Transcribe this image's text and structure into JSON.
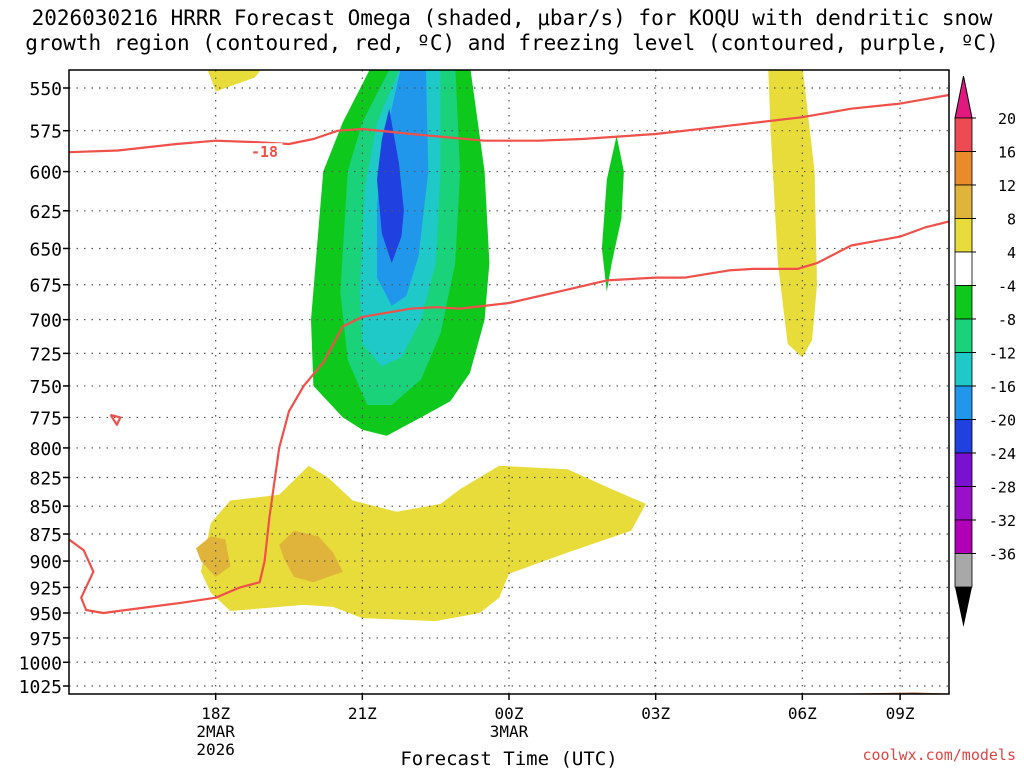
{
  "title": {
    "line1": "2026030216 HRRR Forecast Omega (shaded, μbar/s) for KOQU with dendritic snow",
    "line2": "growth region (contoured, red, ºC) and freezing level (contoured, purple, ºC)"
  },
  "xlabel": "Forecast Time (UTC)",
  "credit": "coolwx.com/models",
  "chart_data": {
    "type": "heatmap",
    "x_unit": "hours since 2026-03-02 15Z",
    "xlim": [
      0,
      18
    ],
    "y_unit": "hPa",
    "ylim": [
      1040,
      540
    ],
    "y_ticks": [
      550,
      575,
      600,
      625,
      650,
      675,
      700,
      725,
      750,
      775,
      800,
      825,
      850,
      875,
      900,
      925,
      950,
      975,
      1000,
      1025
    ],
    "x_ticks": [
      {
        "t": 3,
        "label": "18Z",
        "sub1": "2MAR",
        "sub2": "2026"
      },
      {
        "t": 6,
        "label": "21Z",
        "sub1": "",
        "sub2": ""
      },
      {
        "t": 9,
        "label": "00Z",
        "sub1": "3MAR",
        "sub2": ""
      },
      {
        "t": 12,
        "label": "03Z",
        "sub1": "",
        "sub2": ""
      },
      {
        "t": 15,
        "label": "06Z",
        "sub1": "",
        "sub2": ""
      },
      {
        "t": 17,
        "label": "09Z",
        "sub1": "",
        "sub2": ""
      }
    ],
    "colorbar": {
      "labels": [
        "20",
        "16",
        "12",
        "8",
        "4",
        "-4",
        "-8",
        "-12",
        "-16",
        "-20",
        "-24",
        "-28",
        "-32",
        "-36"
      ],
      "colors": [
        "#ed4b53",
        "#e98b2a",
        "#e0b43a",
        "#e8dc3a",
        "#ffffff",
        "#0fc81c",
        "#19d27a",
        "#1ec9c8",
        "#2197ec",
        "#2040e0",
        "#7a10d0",
        "#9a10c8",
        "#b000b8",
        "#a8a8a8"
      ],
      "top_arrow_color": "#e01880",
      "bottom_arrow_color": "#000000"
    },
    "omega_fills": [
      {
        "level": "4 to 8",
        "color": "#e8dc3a",
        "polygon": [
          [
            2.7,
            910
          ],
          [
            2.9,
            865
          ],
          [
            3.3,
            845
          ],
          [
            4.3,
            840
          ],
          [
            4.9,
            815
          ],
          [
            5.3,
            825
          ],
          [
            5.8,
            845
          ],
          [
            6.7,
            855
          ],
          [
            7.6,
            848
          ],
          [
            8.0,
            835
          ],
          [
            8.8,
            815
          ],
          [
            10.2,
            818
          ],
          [
            11.1,
            835
          ],
          [
            11.8,
            848
          ],
          [
            11.5,
            872
          ],
          [
            10.2,
            892
          ],
          [
            9.0,
            912
          ],
          [
            8.8,
            935
          ],
          [
            8.4,
            950
          ],
          [
            7.5,
            958
          ],
          [
            6.0,
            955
          ],
          [
            5.4,
            944
          ],
          [
            4.8,
            942
          ],
          [
            3.3,
            948
          ],
          [
            2.9,
            930
          ]
        ]
      },
      {
        "level": "4 to 8",
        "color": "#e8dc3a",
        "polygon": [
          [
            2.8,
            537
          ],
          [
            4.0,
            537
          ],
          [
            3.8,
            544
          ],
          [
            3.0,
            552
          ]
        ]
      },
      {
        "level": "4 to 8",
        "color": "#e8dc3a",
        "polygon": [
          [
            14.3,
            537
          ],
          [
            15.0,
            537
          ],
          [
            15.25,
            600
          ],
          [
            15.3,
            675
          ],
          [
            15.2,
            715
          ],
          [
            15.0,
            728
          ],
          [
            14.7,
            718
          ],
          [
            14.5,
            660
          ],
          [
            14.35,
            575
          ]
        ]
      },
      {
        "level": "8 to 12",
        "color": "#e0b43a",
        "polygon": [
          [
            2.6,
            888
          ],
          [
            2.9,
            877
          ],
          [
            3.2,
            880
          ],
          [
            3.3,
            905
          ],
          [
            3.0,
            915
          ],
          [
            2.7,
            900
          ]
        ]
      },
      {
        "level": "8 to 12",
        "color": "#e0b43a",
        "polygon": [
          [
            4.3,
            885
          ],
          [
            4.6,
            872
          ],
          [
            5.1,
            877
          ],
          [
            5.4,
            892
          ],
          [
            5.6,
            910
          ],
          [
            5.0,
            920
          ],
          [
            4.6,
            915
          ],
          [
            4.4,
            898
          ]
        ]
      },
      {
        "level": "-4 to -8",
        "color": "#0fc81c",
        "polygon": [
          [
            6.2,
            537
          ],
          [
            8.2,
            537
          ],
          [
            8.5,
            600
          ],
          [
            8.6,
            660
          ],
          [
            8.5,
            700
          ],
          [
            8.2,
            740
          ],
          [
            7.8,
            762
          ],
          [
            7.2,
            775
          ],
          [
            6.5,
            790
          ],
          [
            6.0,
            785
          ],
          [
            5.6,
            775
          ],
          [
            5.0,
            750
          ],
          [
            4.95,
            700
          ],
          [
            5.2,
            600
          ],
          [
            5.6,
            570
          ]
        ]
      },
      {
        "level": "-4 to -8",
        "color": "#0fc81c",
        "polygon": [
          [
            11.0,
            605
          ],
          [
            11.2,
            578
          ],
          [
            11.35,
            600
          ],
          [
            11.3,
            630
          ],
          [
            11.1,
            660
          ],
          [
            11.0,
            680
          ],
          [
            10.9,
            650
          ]
        ]
      },
      {
        "level": "-8 to -12",
        "color": "#19d27a",
        "polygon": [
          [
            6.6,
            537
          ],
          [
            7.9,
            537
          ],
          [
            8.0,
            600
          ],
          [
            7.9,
            660
          ],
          [
            7.6,
            710
          ],
          [
            7.2,
            745
          ],
          [
            6.6,
            765
          ],
          [
            6.1,
            765
          ],
          [
            5.7,
            730
          ],
          [
            5.55,
            680
          ],
          [
            5.7,
            600
          ],
          [
            6.0,
            570
          ]
        ]
      },
      {
        "level": "-12 to -16",
        "color": "#1ec9c8",
        "polygon": [
          [
            6.8,
            537
          ],
          [
            7.6,
            537
          ],
          [
            7.6,
            600
          ],
          [
            7.5,
            660
          ],
          [
            7.2,
            700
          ],
          [
            6.8,
            728
          ],
          [
            6.4,
            735
          ],
          [
            6.0,
            718
          ],
          [
            5.95,
            680
          ],
          [
            6.05,
            610
          ],
          [
            6.3,
            570
          ]
        ]
      },
      {
        "level": "-16 to -20",
        "color": "#2197ec",
        "polygon": [
          [
            6.8,
            537
          ],
          [
            7.3,
            537
          ],
          [
            7.35,
            600
          ],
          [
            7.15,
            655
          ],
          [
            6.9,
            683
          ],
          [
            6.6,
            690
          ],
          [
            6.3,
            670
          ],
          [
            6.3,
            620
          ],
          [
            6.5,
            575
          ]
        ]
      },
      {
        "level": "-20 to -24",
        "color": "#2040e0",
        "polygon": [
          [
            6.55,
            562
          ],
          [
            6.75,
            595
          ],
          [
            6.85,
            625
          ],
          [
            6.8,
            642
          ],
          [
            6.6,
            660
          ],
          [
            6.4,
            640
          ],
          [
            6.3,
            605
          ],
          [
            6.4,
            580
          ]
        ]
      }
    ],
    "contours": [
      {
        "label": "-18",
        "label_at": [
          4.0,
          588
        ],
        "points": [
          [
            0,
            588
          ],
          [
            1.0,
            587
          ],
          [
            2.2,
            583
          ],
          [
            3.0,
            581
          ],
          [
            3.9,
            582
          ],
          [
            4.5,
            583
          ],
          [
            5.0,
            580
          ],
          [
            5.5,
            575
          ],
          [
            6.0,
            574
          ],
          [
            7.0,
            577
          ],
          [
            8.5,
            581
          ],
          [
            9.6,
            581
          ],
          [
            10.5,
            580
          ],
          [
            12.0,
            577
          ],
          [
            13.5,
            572
          ],
          [
            15.0,
            567
          ],
          [
            16.0,
            562
          ],
          [
            17.0,
            559
          ],
          [
            18.0,
            554
          ]
        ]
      },
      {
        "label": "",
        "label_at": null,
        "points": [
          [
            0,
            880
          ],
          [
            0.3,
            890
          ],
          [
            0.5,
            910
          ],
          [
            0.25,
            935
          ],
          [
            0.35,
            947
          ],
          [
            0.7,
            950
          ],
          [
            1.5,
            945
          ],
          [
            2.3,
            940
          ],
          [
            3.0,
            935
          ],
          [
            3.5,
            925
          ],
          [
            3.9,
            920
          ],
          [
            4.0,
            900
          ],
          [
            4.1,
            860
          ],
          [
            4.3,
            800
          ],
          [
            4.5,
            770
          ],
          [
            4.8,
            750
          ],
          [
            5.2,
            732
          ],
          [
            5.6,
            705
          ],
          [
            6.0,
            698
          ],
          [
            7.0,
            692
          ],
          [
            7.5,
            691
          ],
          [
            8.0,
            692
          ],
          [
            9.0,
            688
          ],
          [
            10.0,
            680
          ],
          [
            11.0,
            672
          ],
          [
            12.0,
            670
          ],
          [
            12.6,
            670
          ],
          [
            13.5,
            665
          ],
          [
            14.0,
            664
          ],
          [
            14.9,
            664
          ],
          [
            15.3,
            660
          ],
          [
            16.0,
            648
          ],
          [
            17.0,
            642
          ],
          [
            17.5,
            636
          ],
          [
            18.0,
            632
          ]
        ]
      },
      {
        "label": "",
        "label_at": null,
        "points": [
          [
            0.85,
            773
          ],
          [
            1.05,
            775
          ],
          [
            0.98,
            781
          ],
          [
            0.85,
            773
          ]
        ]
      }
    ],
    "terrain": {
      "color": "#a85a28",
      "points": [
        [
          0,
          1040
        ],
        [
          0.05,
          1035
        ],
        [
          1.0,
          1034
        ],
        [
          2.0,
          1033
        ],
        [
          5.0,
          1033
        ],
        [
          10.0,
          1033
        ],
        [
          16.0,
          1033
        ],
        [
          17.3,
          1032
        ],
        [
          18,
          1033
        ],
        [
          18,
          1040
        ]
      ]
    }
  }
}
